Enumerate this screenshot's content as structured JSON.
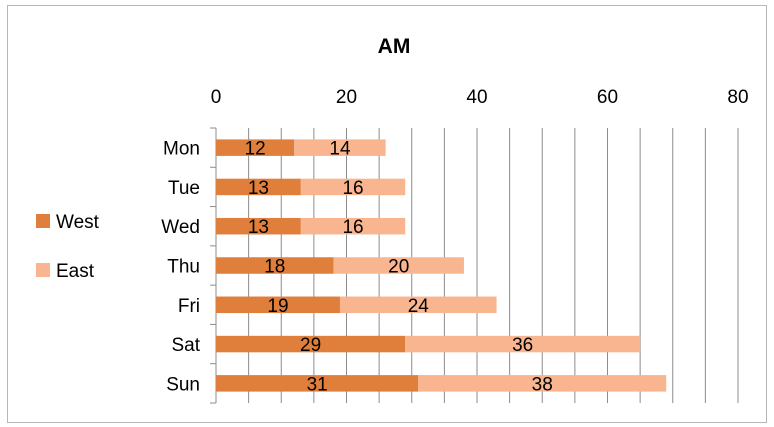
{
  "chart_data": {
    "type": "bar",
    "orientation": "horizontal",
    "stacked": true,
    "title": "AM",
    "categories": [
      "Mon",
      "Tue",
      "Wed",
      "Thu",
      "Fri",
      "Sat",
      "Sun"
    ],
    "series": [
      {
        "name": "West",
        "values": [
          12,
          13,
          13,
          18,
          19,
          29,
          31
        ],
        "color": "#e07f3b"
      },
      {
        "name": "East",
        "values": [
          14,
          16,
          16,
          20,
          24,
          36,
          38
        ],
        "color": "#f8b58f"
      }
    ],
    "xlim": [
      0,
      80
    ],
    "x_ticks": [
      "0",
      "20",
      "40",
      "60",
      "80"
    ],
    "x_axis_position": "top",
    "gridlines": true,
    "data_labels": true,
    "legend_position": "left"
  }
}
